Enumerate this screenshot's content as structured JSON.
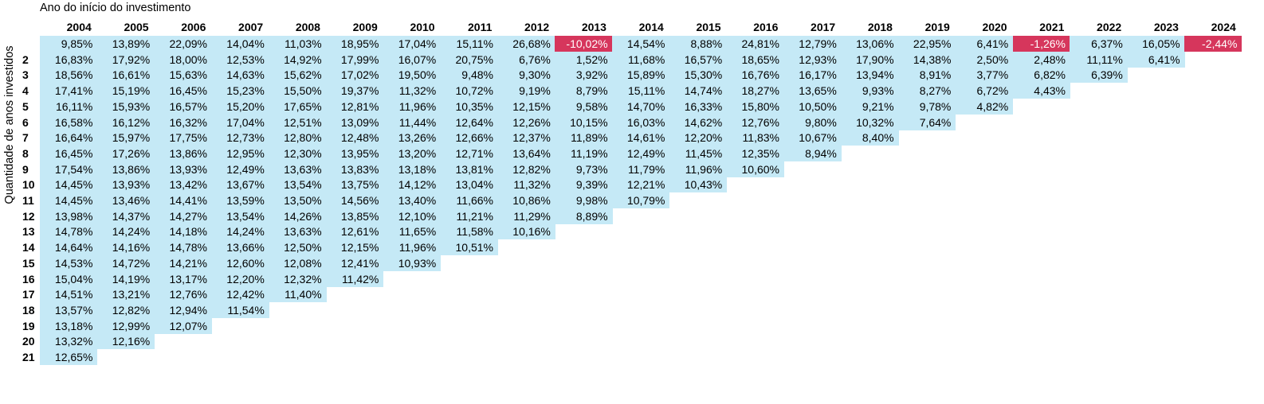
{
  "chart_data": {
    "type": "table",
    "column_header_label": "Ano do início do investimento",
    "row_header_label": "Quantidade de anos investidos",
    "columns": [
      "2004",
      "2005",
      "2006",
      "2007",
      "2008",
      "2009",
      "2010",
      "2011",
      "2012",
      "2013",
      "2014",
      "2015",
      "2016",
      "2017",
      "2018",
      "2019",
      "2020",
      "2021",
      "2022",
      "2023",
      "2024"
    ],
    "row_labels": [
      "",
      "2",
      "3",
      "4",
      "5",
      "6",
      "7",
      "8",
      "9",
      "10",
      "11",
      "12",
      "13",
      "14",
      "15",
      "16",
      "17",
      "18",
      "19",
      "20",
      "21"
    ],
    "rows": [
      [
        "9,85%",
        "13,89%",
        "22,09%",
        "14,04%",
        "11,03%",
        "18,95%",
        "17,04%",
        "15,11%",
        "26,68%",
        "-10,02%",
        "14,54%",
        "8,88%",
        "24,81%",
        "12,79%",
        "13,06%",
        "22,95%",
        "6,41%",
        "-1,26%",
        "6,37%",
        "16,05%",
        "-2,44%"
      ],
      [
        "16,83%",
        "17,92%",
        "18,00%",
        "12,53%",
        "14,92%",
        "17,99%",
        "16,07%",
        "20,75%",
        "6,76%",
        "1,52%",
        "11,68%",
        "16,57%",
        "18,65%",
        "12,93%",
        "17,90%",
        "14,38%",
        "2,50%",
        "2,48%",
        "11,11%",
        "6,41%"
      ],
      [
        "18,56%",
        "16,61%",
        "15,63%",
        "14,63%",
        "15,62%",
        "17,02%",
        "19,50%",
        "9,48%",
        "9,30%",
        "3,92%",
        "15,89%",
        "15,30%",
        "16,76%",
        "16,17%",
        "13,94%",
        "8,91%",
        "3,77%",
        "6,82%",
        "6,39%"
      ],
      [
        "17,41%",
        "15,19%",
        "16,45%",
        "15,23%",
        "15,50%",
        "19,37%",
        "11,32%",
        "10,72%",
        "9,19%",
        "8,79%",
        "15,11%",
        "14,74%",
        "18,27%",
        "13,65%",
        "9,93%",
        "8,27%",
        "6,72%",
        "4,43%"
      ],
      [
        "16,11%",
        "15,93%",
        "16,57%",
        "15,20%",
        "17,65%",
        "12,81%",
        "11,96%",
        "10,35%",
        "12,15%",
        "9,58%",
        "14,70%",
        "16,33%",
        "15,80%",
        "10,50%",
        "9,21%",
        "9,78%",
        "4,82%"
      ],
      [
        "16,58%",
        "16,12%",
        "16,32%",
        "17,04%",
        "12,51%",
        "13,09%",
        "11,44%",
        "12,64%",
        "12,26%",
        "10,15%",
        "16,03%",
        "14,62%",
        "12,76%",
        "9,80%",
        "10,32%",
        "7,64%"
      ],
      [
        "16,64%",
        "15,97%",
        "17,75%",
        "12,73%",
        "12,80%",
        "12,48%",
        "13,26%",
        "12,66%",
        "12,37%",
        "11,89%",
        "14,61%",
        "12,20%",
        "11,83%",
        "10,67%",
        "8,40%"
      ],
      [
        "16,45%",
        "17,26%",
        "13,86%",
        "12,95%",
        "12,30%",
        "13,95%",
        "13,20%",
        "12,71%",
        "13,64%",
        "11,19%",
        "12,49%",
        "11,45%",
        "12,35%",
        "8,94%"
      ],
      [
        "17,54%",
        "13,86%",
        "13,93%",
        "12,49%",
        "13,63%",
        "13,83%",
        "13,18%",
        "13,81%",
        "12,82%",
        "9,73%",
        "11,79%",
        "11,96%",
        "10,60%"
      ],
      [
        "14,45%",
        "13,93%",
        "13,42%",
        "13,67%",
        "13,54%",
        "13,75%",
        "14,12%",
        "13,04%",
        "11,32%",
        "9,39%",
        "12,21%",
        "10,43%"
      ],
      [
        "14,45%",
        "13,46%",
        "14,41%",
        "13,59%",
        "13,50%",
        "14,56%",
        "13,40%",
        "11,66%",
        "10,86%",
        "9,98%",
        "10,79%"
      ],
      [
        "13,98%",
        "14,37%",
        "14,27%",
        "13,54%",
        "14,26%",
        "13,85%",
        "12,10%",
        "11,21%",
        "11,29%",
        "8,89%"
      ],
      [
        "14,78%",
        "14,24%",
        "14,18%",
        "14,24%",
        "13,63%",
        "12,61%",
        "11,65%",
        "11,58%",
        "10,16%"
      ],
      [
        "14,64%",
        "14,16%",
        "14,78%",
        "13,66%",
        "12,50%",
        "12,15%",
        "11,96%",
        "10,51%"
      ],
      [
        "14,53%",
        "14,72%",
        "14,21%",
        "12,60%",
        "12,08%",
        "12,41%",
        "10,93%"
      ],
      [
        "15,04%",
        "14,19%",
        "13,17%",
        "12,20%",
        "12,32%",
        "11,42%"
      ],
      [
        "14,51%",
        "13,21%",
        "12,76%",
        "12,42%",
        "11,40%"
      ],
      [
        "13,57%",
        "12,82%",
        "12,94%",
        "11,54%"
      ],
      [
        "13,18%",
        "12,99%",
        "12,07%"
      ],
      [
        "13,32%",
        "12,16%"
      ],
      [
        "12,65%"
      ]
    ],
    "colors": {
      "positive_fill": "#c5e9f6",
      "negative_fill": "#d6365c"
    }
  }
}
